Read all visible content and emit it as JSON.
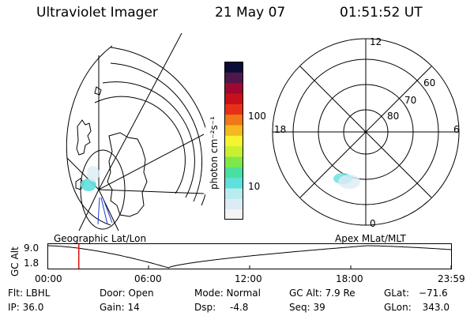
{
  "header": {
    "instrument": "Ultraviolet Imager",
    "date": "21 May 07",
    "time": "01:51:52 UT"
  },
  "left_panel": {
    "label": "Geographic Lat/Lon"
  },
  "right_panel": {
    "label": "Apex MLat/MLT",
    "mlt_labels": {
      "top": "12",
      "left": "18",
      "right": "6",
      "bottom": "0"
    },
    "lat_labels": [
      "60",
      "70",
      "80"
    ]
  },
  "colorbar": {
    "unit_label": "photon cm⁻²s⁻¹",
    "ticks": [
      "100",
      "10"
    ],
    "colors": [
      "#f4f4f4",
      "#dcecf4",
      "#b8ecf0",
      "#5fe0dc",
      "#48e0a0",
      "#7ee84a",
      "#c8f030",
      "#f4f430",
      "#f4b820",
      "#f07818",
      "#e83018",
      "#c8101c",
      "#a00830",
      "#50184a",
      "#0c0c3a"
    ]
  },
  "alt_plot": {
    "y_title": "GC Alt",
    "y_ticks": [
      "9.0",
      "1.8"
    ],
    "x_ticks": [
      "00:00",
      "06:00",
      "12:00",
      "18:00",
      "23:59"
    ],
    "marker_time": "01:52"
  },
  "info": {
    "flt": "Flt: LBHL",
    "ip": "IP: 36.0",
    "door": "Door: Open",
    "gain": "Gain: 14",
    "mode": "Mode: Normal",
    "dsp_label": "Dsp:",
    "dsp_value": "-4.8",
    "gc_alt": "GC Alt: 7.9 Re",
    "seq": "Seq: 39",
    "glat_label": "GLat:",
    "glat_value": "−71.6",
    "glon_label": "GLon:",
    "glon_value": "343.0"
  }
}
